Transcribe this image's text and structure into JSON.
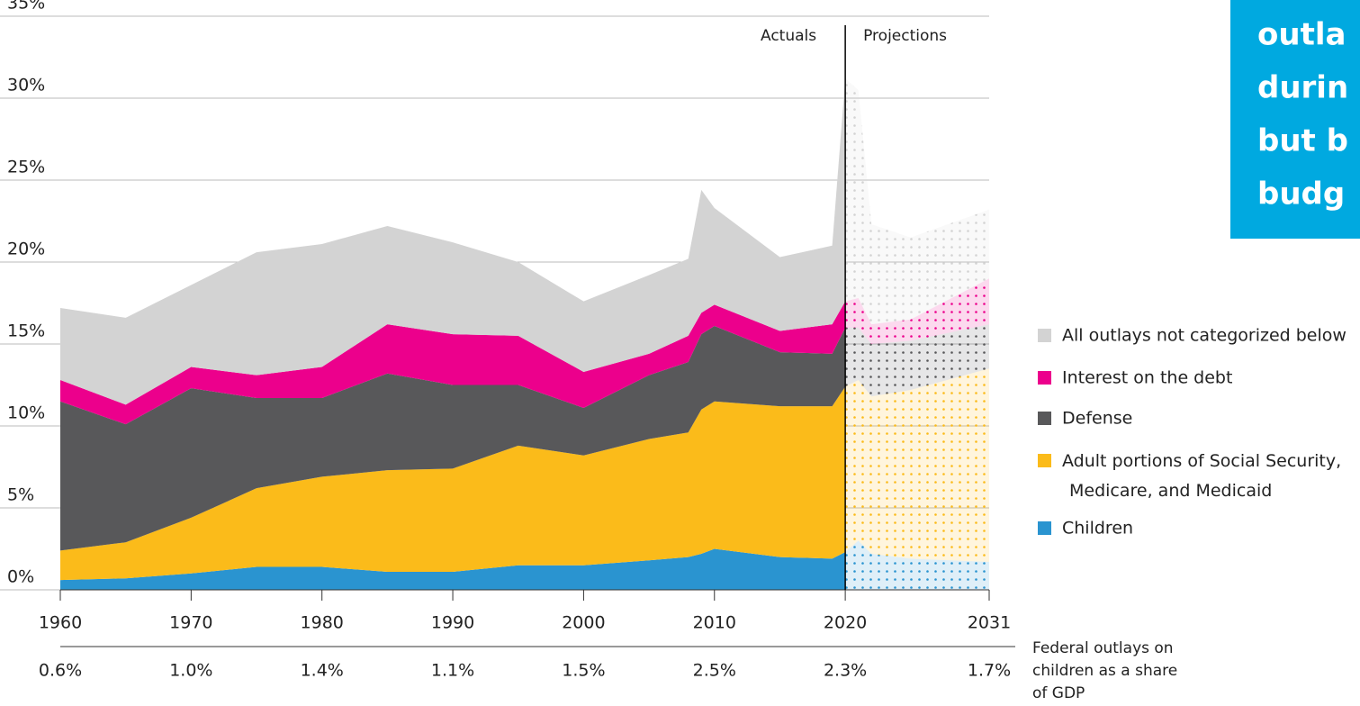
{
  "chart_data": {
    "type": "stacked_area",
    "x": [
      1960,
      1965,
      1970,
      1975,
      1980,
      1985,
      1990,
      1995,
      2000,
      2005,
      2008,
      2009,
      2010,
      2015,
      2019,
      2020,
      2021,
      2022,
      2025,
      2031
    ],
    "series": [
      {
        "name": "Children",
        "color": "#2a94d0",
        "values": [
          0.6,
          0.7,
          1.0,
          1.4,
          1.4,
          1.1,
          1.1,
          1.5,
          1.5,
          1.8,
          2.0,
          2.2,
          2.5,
          2.0,
          1.9,
          2.3,
          3.0,
          2.2,
          1.9,
          1.7
        ]
      },
      {
        "name": "Adult portions of Social Security, Medicare, and Medicaid",
        "color": "#fbbb1a",
        "values": [
          1.8,
          2.2,
          3.4,
          4.8,
          5.5,
          6.2,
          6.3,
          7.3,
          6.7,
          7.4,
          7.6,
          8.8,
          9.0,
          9.2,
          9.3,
          10.1,
          9.8,
          9.6,
          10.3,
          11.8
        ]
      },
      {
        "name": "Defense",
        "color": "#58585a",
        "values": [
          9.1,
          7.2,
          7.9,
          5.5,
          4.8,
          5.9,
          5.1,
          3.7,
          2.9,
          3.9,
          4.3,
          4.6,
          4.6,
          3.3,
          3.2,
          3.6,
          3.2,
          3.2,
          3.0,
          2.7
        ]
      },
      {
        "name": "Interest on the debt",
        "color": "#ec008c",
        "values": [
          1.3,
          1.2,
          1.3,
          1.4,
          1.9,
          3.0,
          3.1,
          3.0,
          2.2,
          1.3,
          1.6,
          1.3,
          1.3,
          1.3,
          1.8,
          1.6,
          1.8,
          1.2,
          1.3,
          2.8
        ]
      },
      {
        "name": "All outlays not categorized below",
        "color": "#d3d3d3",
        "values": [
          4.4,
          5.3,
          5.0,
          7.5,
          7.5,
          6.0,
          5.6,
          4.5,
          4.3,
          4.8,
          4.7,
          7.5,
          5.9,
          4.5,
          4.8,
          13.6,
          12.7,
          6.1,
          5.0,
          4.2
        ]
      }
    ],
    "xlim": [
      1960,
      2031
    ],
    "xticks": [
      1960,
      1970,
      1980,
      1990,
      2000,
      2010,
      2020,
      2031
    ],
    "ylim": [
      0,
      35
    ],
    "yticks": [
      {
        "value": 0,
        "label": "0%"
      },
      {
        "value": 5,
        "label": "5%"
      },
      {
        "value": 10,
        "label": "10%"
      },
      {
        "value": 15,
        "label": "15%"
      },
      {
        "value": 20,
        "label": "20%"
      },
      {
        "value": 25,
        "label": "25%"
      },
      {
        "value": 30,
        "label": "30%"
      },
      {
        "value": 35,
        "label": "35%"
      }
    ],
    "grid": true,
    "split_year": 2020,
    "annotations": [
      "Actuals",
      "Projections"
    ],
    "gdp_share": {
      "label_lines": [
        "Federal outlays on",
        "children as a share",
        "of GDP"
      ],
      "values": [
        0.6,
        1.0,
        1.4,
        1.1,
        1.5,
        2.5,
        2.3,
        1.7
      ],
      "value_labels": [
        "0.6%",
        "1.0%",
        "1.4%",
        "1.1%",
        "1.5%",
        "2.5%",
        "2.3%",
        "1.7%"
      ]
    }
  },
  "callout": {
    "lines": [
      "outla",
      "durin",
      "but b",
      "budg"
    ]
  }
}
